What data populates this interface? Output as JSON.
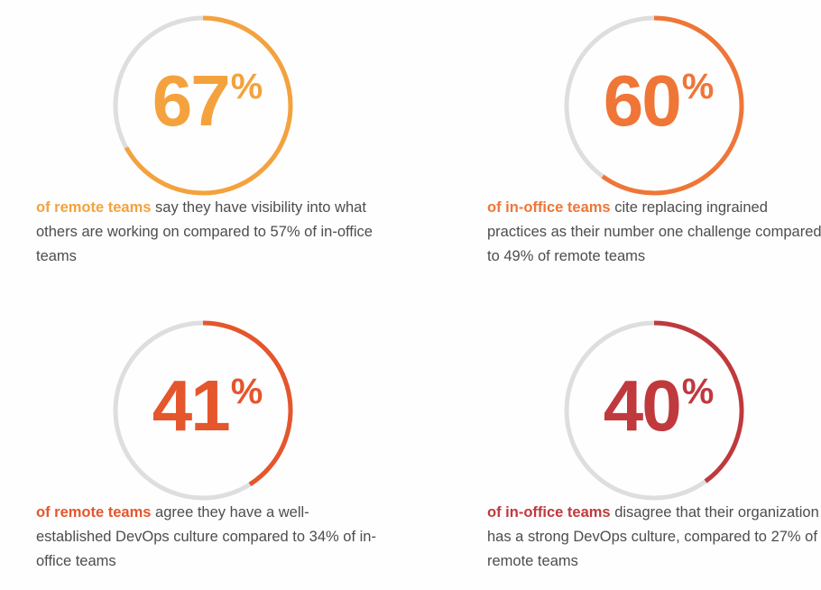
{
  "chart_data": [
    {
      "type": "donut",
      "value": 67,
      "percent_sign": "%",
      "color": "#f4a23d",
      "highlight": "of remote teams",
      "text": " say they have visibility into what others are working on compared to 57% of in-office teams"
    },
    {
      "type": "donut",
      "value": 60,
      "percent_sign": "%",
      "color": "#ef7637",
      "highlight": "of in-office teams",
      "text": " cite replacing ingrained practices as their number one challenge compared to 49% of remote teams"
    },
    {
      "type": "donut",
      "value": 41,
      "percent_sign": "%",
      "color": "#e5562c",
      "highlight": "of remote teams",
      "text": " agree they have a well-established DevOps culture compared to 34% of in-office teams"
    },
    {
      "type": "donut",
      "value": 40,
      "percent_sign": "%",
      "color": "#c0393d",
      "highlight": "of in-office teams",
      "text": " disagree that their organization has a strong DevOps culture, compared to 27% of remote teams"
    }
  ]
}
